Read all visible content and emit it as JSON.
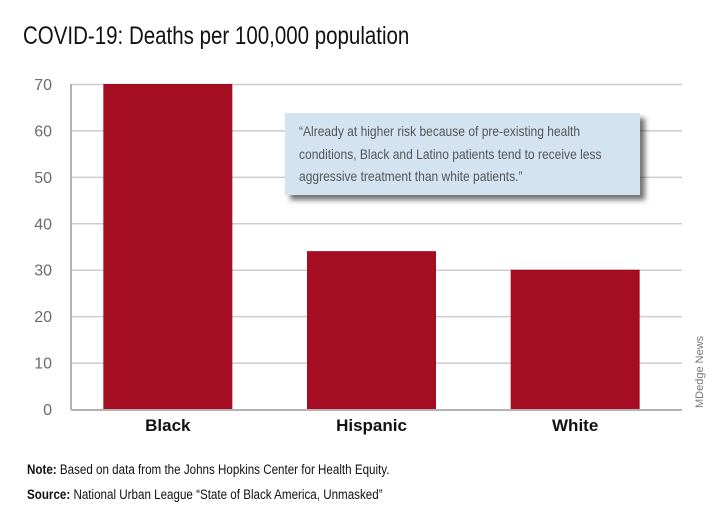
{
  "chart_data": {
    "type": "bar",
    "title": "COVID-19: Deaths per 100,000 population",
    "categories": [
      "Black",
      "Hispanic",
      "White"
    ],
    "values": [
      70,
      34,
      30
    ],
    "ylim": [
      0,
      70
    ],
    "yticks": [
      0,
      10,
      20,
      30,
      40,
      50,
      60,
      70
    ],
    "xlabel": "",
    "ylabel": "",
    "grid": true,
    "bar_color": "#a50d22",
    "annotation": "“Already at higher risk because of pre-existing health conditions, Black and Latino patients tend to receive less aggressive treatment than white patients.”"
  },
  "footer": {
    "note_label": "Note:",
    "note_text": " Based on data from the Johns Hopkins Center for Health Equity.",
    "source_label": "Source:",
    "source_text": " National Urban League “State of Black America, Unmasked”"
  },
  "credit": "MDedge News"
}
